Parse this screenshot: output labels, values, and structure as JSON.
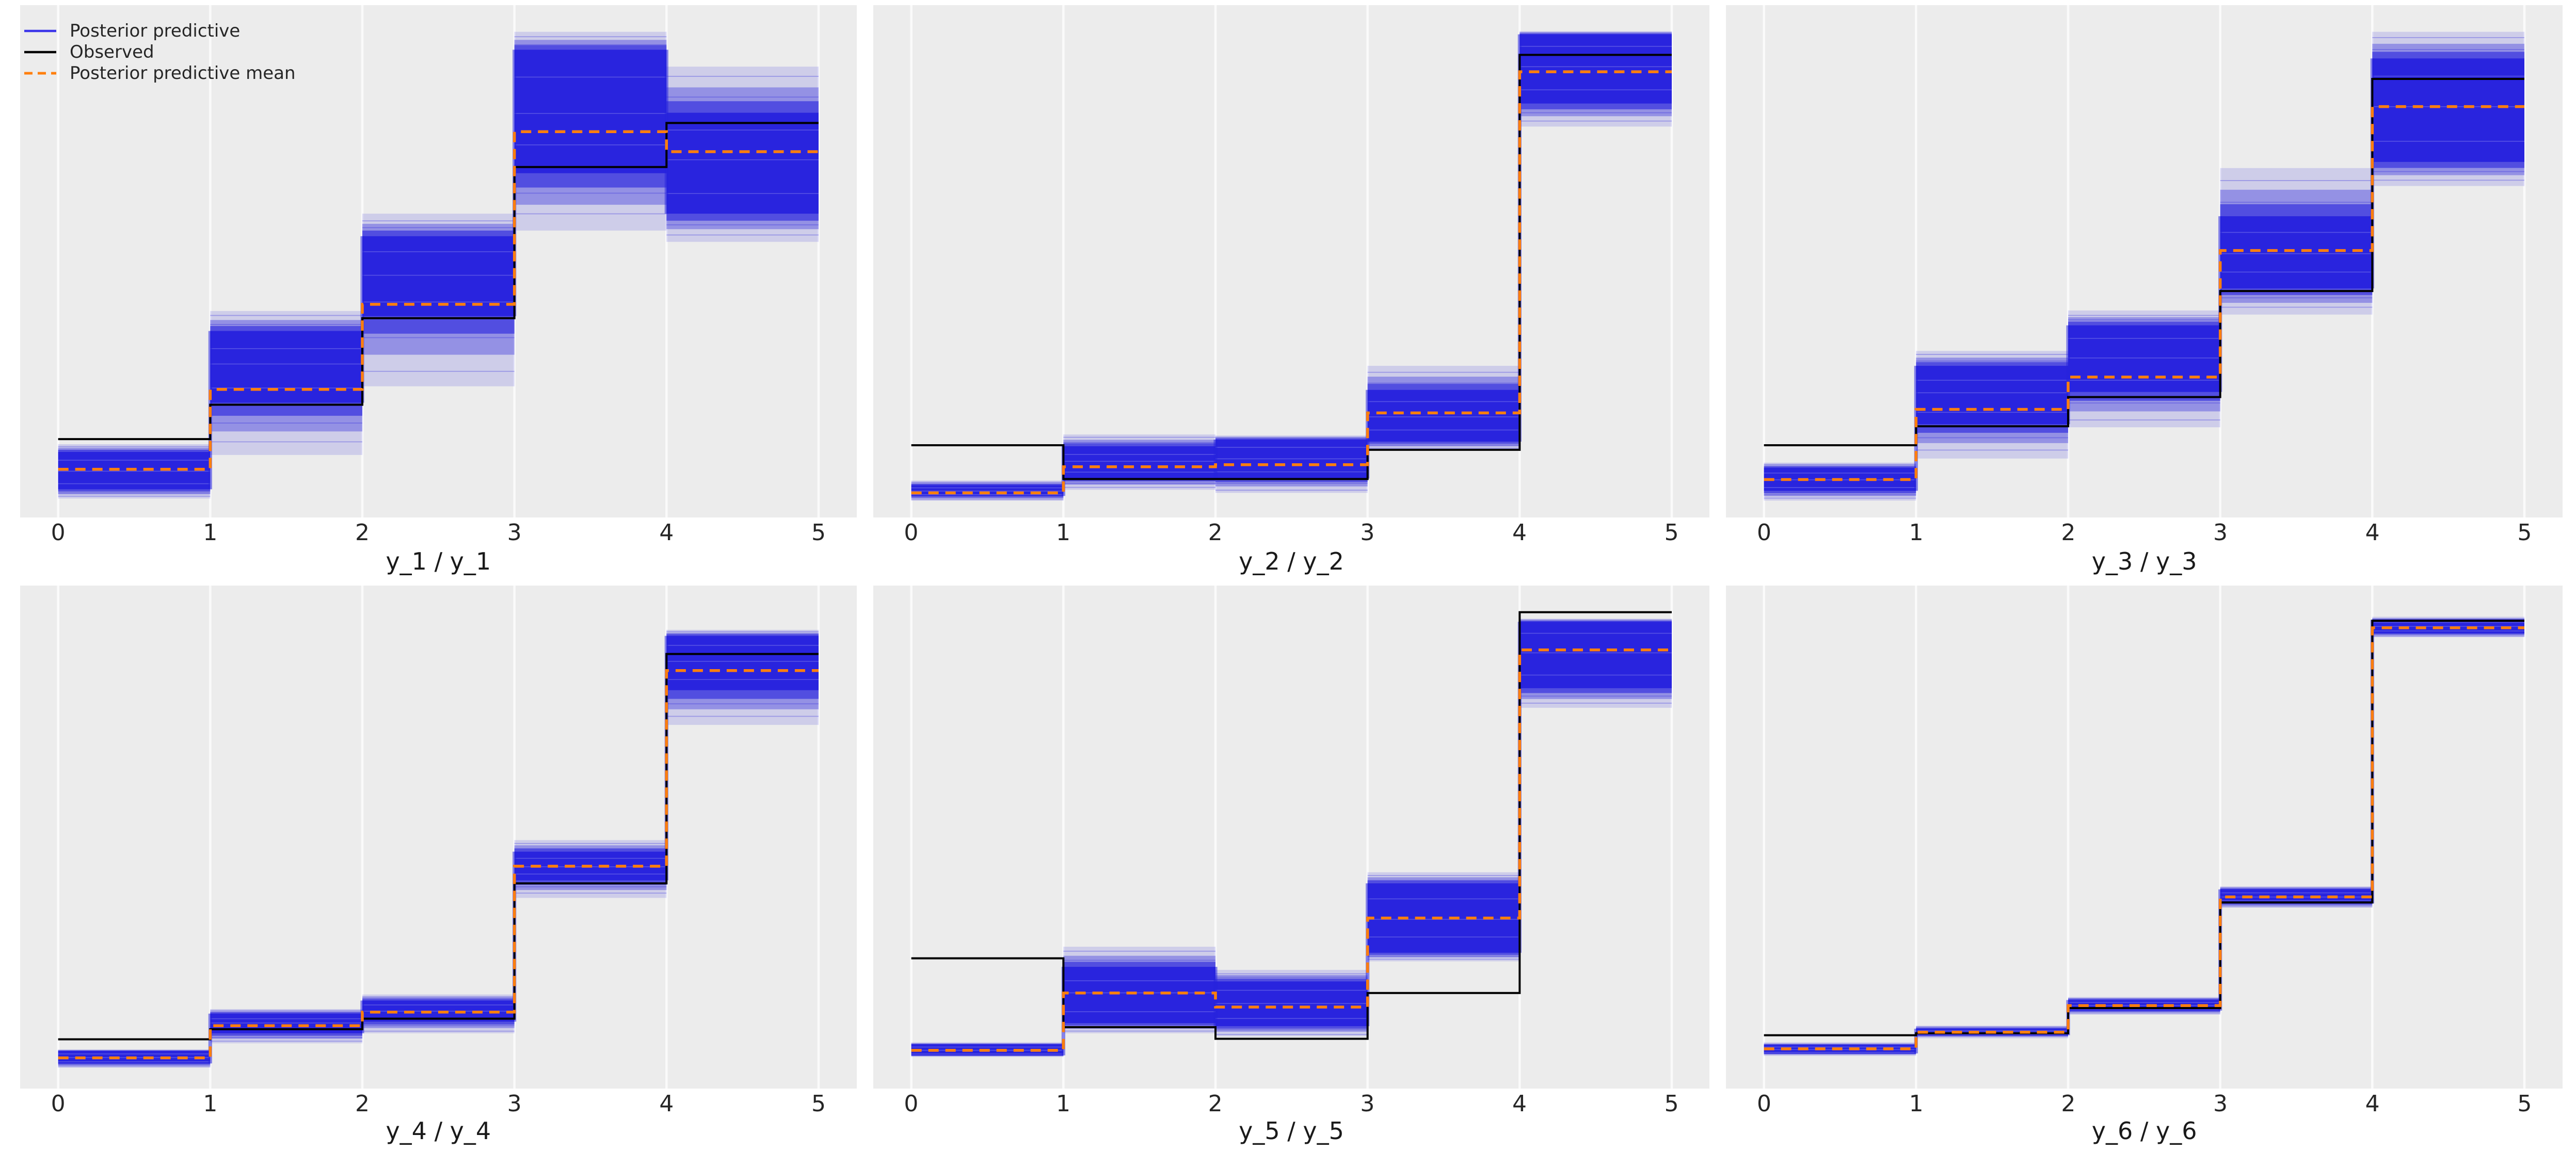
{
  "colors": {
    "figure_bg": "#ffffff",
    "axes_bg": "#ececec",
    "gridline": "#fafafa",
    "ppc_blue": "#2722dd",
    "legend_blue": "#3b35ea",
    "observed_black": "#000000",
    "mean_orange": "#ff7f0e",
    "text": "#262626"
  },
  "legend": {
    "items": [
      {
        "label": "Posterior predictive",
        "color": "#3b35ea",
        "style": "solid"
      },
      {
        "label": "Observed",
        "color": "#000000",
        "style": "solid"
      },
      {
        "label": "Posterior predictive mean",
        "color": "#ff7f0e",
        "style": "dashed"
      }
    ]
  },
  "chart_data": {
    "type": "line",
    "subtype": "posterior-predictive-check-step-bands",
    "note": "6 subplots; x axis 0..5 in unit bins; no y ticks shown so y values are fractions of axis height; ppc_band = dense blue core [lo,hi], ppc_outer = faint blue extent [lo,hi]",
    "grid": "vertical white gridlines at each x tick",
    "legend_position": "top-left of first subplot",
    "x_ticks": [
      0,
      1,
      2,
      3,
      4,
      5
    ],
    "x_tick_labels": [
      "0",
      "1",
      "2",
      "3",
      "4",
      "5"
    ],
    "ylim": [
      0,
      1
    ],
    "subplots": [
      {
        "xlabel": "y_1 / y_1",
        "bins": [
          {
            "x0": 0,
            "x1": 1,
            "ppc_band": [
              0.055,
              0.128
            ],
            "ppc_outer": [
              0.037,
              0.143
            ],
            "ppc_mean": 0.094,
            "observed": 0.153
          },
          {
            "x0": 1,
            "x1": 2,
            "ppc_band": [
              0.224,
              0.364
            ],
            "ppc_outer": [
              0.122,
              0.403
            ],
            "ppc_mean": 0.25,
            "observed": 0.22
          },
          {
            "x0": 2,
            "x1": 3,
            "ppc_band": [
              0.393,
              0.549
            ],
            "ppc_outer": [
              0.256,
              0.593
            ],
            "ppc_mean": 0.416,
            "observed": 0.389
          },
          {
            "x0": 3,
            "x1": 4,
            "ppc_band": [
              0.672,
              0.913
            ],
            "ppc_outer": [
              0.56,
              0.948
            ],
            "ppc_mean": 0.753,
            "observed": 0.684
          },
          {
            "x0": 4,
            "x1": 5,
            "ppc_band": [
              0.593,
              0.79
            ],
            "ppc_outer": [
              0.538,
              0.88
            ],
            "ppc_mean": 0.714,
            "observed": 0.77
          }
        ]
      },
      {
        "xlabel": "y_2 / y_2",
        "bins": [
          {
            "x0": 0,
            "x1": 1,
            "ppc_band": [
              0.042,
              0.063
            ],
            "ppc_outer": [
              0.033,
              0.072
            ],
            "ppc_mean": 0.048,
            "observed": 0.141
          },
          {
            "x0": 1,
            "x1": 2,
            "ppc_band": [
              0.076,
              0.139
            ],
            "ppc_outer": [
              0.054,
              0.162
            ],
            "ppc_mean": 0.099,
            "observed": 0.075
          },
          {
            "x0": 2,
            "x1": 3,
            "ppc_band": [
              0.076,
              0.152
            ],
            "ppc_outer": [
              0.048,
              0.16
            ],
            "ppc_mean": 0.103,
            "observed": 0.075
          },
          {
            "x0": 3,
            "x1": 4,
            "ppc_band": [
              0.148,
              0.249
            ],
            "ppc_outer": [
              0.131,
              0.296
            ],
            "ppc_mean": 0.204,
            "observed": 0.132
          },
          {
            "x0": 4,
            "x1": 5,
            "ppc_band": [
              0.808,
              0.943
            ],
            "ppc_outer": [
              0.763,
              0.949
            ],
            "ppc_mean": 0.87,
            "observed": 0.903
          }
        ]
      },
      {
        "xlabel": "y_3 / y_3",
        "bins": [
          {
            "x0": 0,
            "x1": 1,
            "ppc_band": [
              0.052,
              0.097
            ],
            "ppc_outer": [
              0.033,
              0.107
            ],
            "ppc_mean": 0.074,
            "observed": 0.141
          },
          {
            "x0": 1,
            "x1": 2,
            "ppc_band": [
              0.182,
              0.296
            ],
            "ppc_outer": [
              0.115,
              0.325
            ],
            "ppc_mean": 0.211,
            "observed": 0.178
          },
          {
            "x0": 2,
            "x1": 3,
            "ppc_band": [
              0.245,
              0.375
            ],
            "ppc_outer": [
              0.176,
              0.404
            ],
            "ppc_mean": 0.274,
            "observed": 0.235
          },
          {
            "x0": 3,
            "x1": 4,
            "ppc_band": [
              0.447,
              0.588
            ],
            "ppc_outer": [
              0.396,
              0.682
            ],
            "ppc_mean": 0.521,
            "observed": 0.442
          },
          {
            "x0": 4,
            "x1": 5,
            "ppc_band": [
              0.694,
              0.896
            ],
            "ppc_outer": [
              0.647,
              0.948
            ],
            "ppc_mean": 0.802,
            "observed": 0.856
          }
        ]
      },
      {
        "xlabel": "y_4 / y_4",
        "bins": [
          {
            "x0": 0,
            "x1": 1,
            "ppc_band": [
              0.05,
              0.075
            ],
            "ppc_outer": [
              0.042,
              0.078
            ],
            "ppc_mean": 0.061,
            "observed": 0.098
          },
          {
            "x0": 1,
            "x1": 2,
            "ppc_band": [
              0.11,
              0.149
            ],
            "ppc_outer": [
              0.09,
              0.158
            ],
            "ppc_mean": 0.125,
            "observed": 0.118
          },
          {
            "x0": 2,
            "x1": 3,
            "ppc_band": [
              0.133,
              0.175
            ],
            "ppc_outer": [
              0.11,
              0.187
            ],
            "ppc_mean": 0.152,
            "observed": 0.139
          },
          {
            "x0": 3,
            "x1": 4,
            "ppc_band": [
              0.414,
              0.471
            ],
            "ppc_outer": [
              0.379,
              0.494
            ],
            "ppc_mean": 0.442,
            "observed": 0.408
          },
          {
            "x0": 4,
            "x1": 5,
            "ppc_band": [
              0.792,
              0.9
            ],
            "ppc_outer": [
              0.723,
              0.912
            ],
            "ppc_mean": 0.831,
            "observed": 0.864
          }
        ]
      },
      {
        "xlabel": "y_5 / y_5",
        "bins": [
          {
            "x0": 0,
            "x1": 1,
            "ppc_band": [
              0.066,
              0.088
            ],
            "ppc_outer": [
              0.063,
              0.092
            ],
            "ppc_mean": 0.076,
            "observed": 0.259
          },
          {
            "x0": 1,
            "x1": 2,
            "ppc_band": [
              0.13,
              0.242
            ],
            "ppc_outer": [
              0.11,
              0.282
            ],
            "ppc_mean": 0.19,
            "observed": 0.122
          },
          {
            "x0": 2,
            "x1": 3,
            "ppc_band": [
              0.124,
              0.213
            ],
            "ppc_outer": [
              0.104,
              0.236
            ],
            "ppc_mean": 0.162,
            "observed": 0.099
          },
          {
            "x0": 3,
            "x1": 4,
            "ppc_band": [
              0.27,
              0.408
            ],
            "ppc_outer": [
              0.253,
              0.43
            ],
            "ppc_mean": 0.339,
            "observed": 0.19
          },
          {
            "x0": 4,
            "x1": 5,
            "ppc_band": [
              0.796,
              0.928
            ],
            "ppc_outer": [
              0.757,
              0.934
            ],
            "ppc_mean": 0.872,
            "observed": 0.947
          }
        ]
      },
      {
        "xlabel": "y_6 / y_6",
        "bins": [
          {
            "x0": 0,
            "x1": 1,
            "ppc_band": [
              0.07,
              0.087
            ],
            "ppc_outer": [
              0.065,
              0.092
            ],
            "ppc_mean": 0.079,
            "observed": 0.106
          },
          {
            "x0": 1,
            "x1": 2,
            "ppc_band": [
              0.106,
              0.119
            ],
            "ppc_outer": [
              0.1,
              0.125
            ],
            "ppc_mean": 0.112,
            "observed": 0.11
          },
          {
            "x0": 2,
            "x1": 3,
            "ppc_band": [
              0.155,
              0.176
            ],
            "ppc_outer": [
              0.148,
              0.182
            ],
            "ppc_mean": 0.165,
            "observed": 0.16
          },
          {
            "x0": 3,
            "x1": 4,
            "ppc_band": [
              0.368,
              0.396
            ],
            "ppc_outer": [
              0.36,
              0.402
            ],
            "ppc_mean": 0.381,
            "observed": 0.37
          },
          {
            "x0": 4,
            "x1": 5,
            "ppc_band": [
              0.905,
              0.932
            ],
            "ppc_outer": [
              0.898,
              0.938
            ],
            "ppc_mean": 0.916,
            "observed": 0.93
          }
        ]
      }
    ]
  }
}
